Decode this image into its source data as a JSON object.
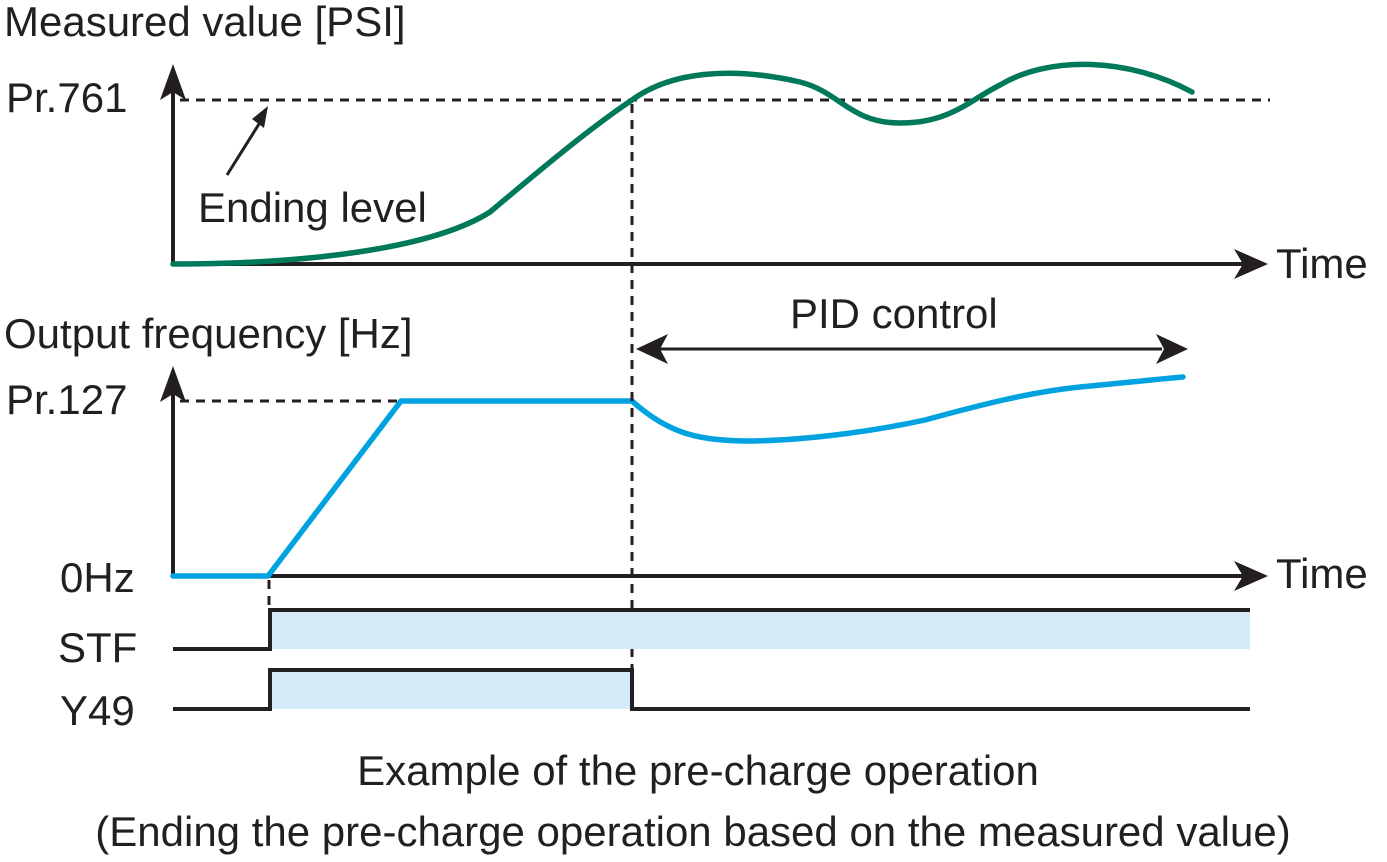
{
  "colors": {
    "measured_curve": "#00795a",
    "frequency_curve": "#00a3e0",
    "signal_fill": "#d4eaf7",
    "ink": "#231f20"
  },
  "labels": {
    "measured_axis_title": "Measured value [PSI]",
    "measured_level": "Pr.761",
    "ending_level": "Ending level",
    "time_top": "Time",
    "pid_control": "PID control",
    "frequency_axis_title": "Output frequency [Hz]",
    "frequency_level": "Pr.127",
    "zero_hz": "0Hz",
    "time_bottom": "Time",
    "signal_stf": "STF",
    "signal_y49": "Y49"
  },
  "caption": {
    "line1": "Example of the pre-charge operation",
    "line2": "(Ending the pre-charge operation based on the measured value)"
  }
}
